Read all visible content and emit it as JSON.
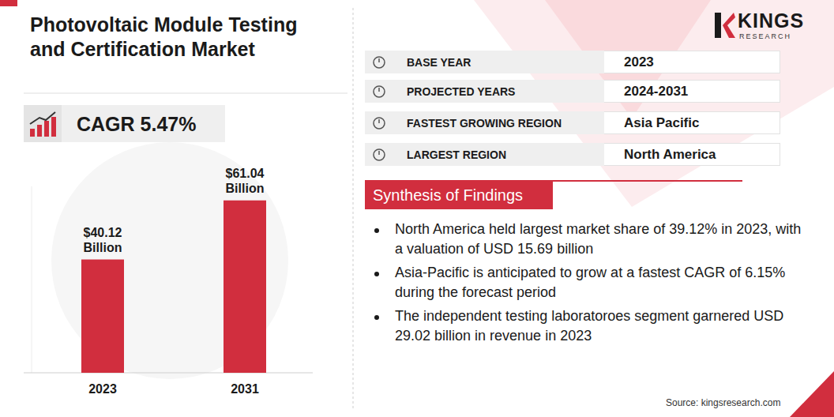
{
  "chart_data": {
    "type": "bar",
    "title": "Photovoltaic Module Testing and Certification Market",
    "categories": [
      "2023",
      "2031"
    ],
    "values": [
      40.12,
      61.04
    ],
    "value_labels": [
      "$40.12 Billion",
      "$61.04 Billion"
    ],
    "color": "#d12e3e",
    "ylim": [
      0,
      66
    ],
    "data_labels": true,
    "tick_labels": "x",
    "annotations": [
      "CAGR 5.47%"
    ]
  },
  "brand": {
    "name": "KINGS",
    "tagline": "RESEARCH"
  },
  "summary": [
    {
      "label": "BASE YEAR",
      "value": "2023"
    },
    {
      "label": "PROJECTED YEARS",
      "value": "2024-2031"
    },
    {
      "label": "FASTEST GROWING REGION",
      "value": "Asia Pacific"
    },
    {
      "label": "LARGEST REGION",
      "value": "North America"
    }
  ],
  "findings": {
    "heading": "Synthesis of Findings",
    "items": [
      "North America held largest market share of 39.12% in 2023, with a valuation of USD 15.69 billion",
      "Asia-Pacific is anticipated to grow at a fastest CAGR of 6.15% during the forecast period",
      "The independent testing laboratoroes segment garnered USD 29.02 billion in revenue in 2023"
    ]
  },
  "source": "Source: kingsresearch.com"
}
